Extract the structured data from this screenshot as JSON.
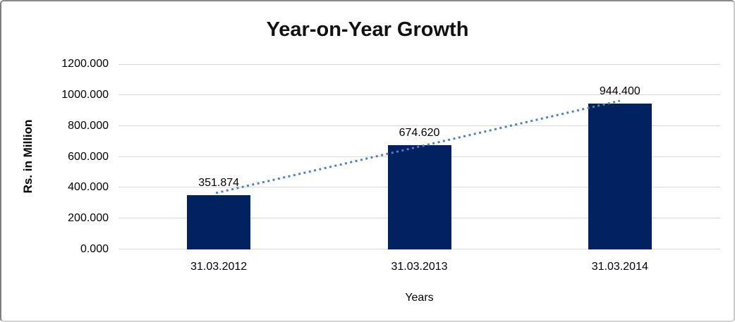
{
  "window": {
    "background": "#ffffff",
    "border_color": "#8a8a8a"
  },
  "chart_data": {
    "type": "bar",
    "title": "Year-on-Year Growth",
    "xlabel": "Years",
    "ylabel": "Rs. in Million",
    "categories": [
      "31.03.2012",
      "31.03.2013",
      "31.03.2014"
    ],
    "values": [
      351.874,
      674.62,
      944.4
    ],
    "data_labels": [
      "351.874",
      "674.620",
      "944.400"
    ],
    "ylim": [
      0,
      1200
    ],
    "ytick_step": 200,
    "ytick_labels": [
      "0.000",
      "200.000",
      "400.000",
      "600.000",
      "800.000",
      "1000.000",
      "1200.000"
    ],
    "grid": true,
    "legend": "none",
    "bar_color": "#022160",
    "gridline_color": "#d9d9d9",
    "label_color": "#000000",
    "trendline": {
      "type": "linear",
      "style": "dotted",
      "color": "#4F81BD",
      "from_category": "31.03.2012",
      "to_category": "31.03.2014"
    }
  }
}
